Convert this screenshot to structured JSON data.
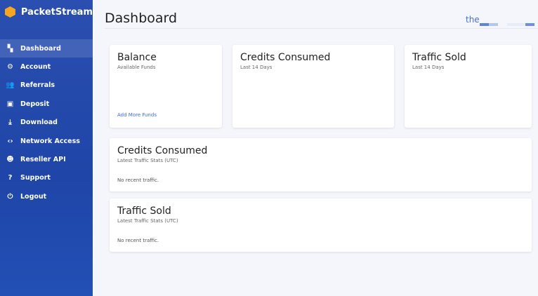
{
  "app": {
    "name": "PacketStream"
  },
  "sidebar": {
    "items": [
      {
        "label": "Dashboard",
        "icon": "dashboard-icon",
        "glyph": "▚",
        "active": true
      },
      {
        "label": "Account",
        "icon": "gear-icon",
        "glyph": "⚙"
      },
      {
        "label": "Referrals",
        "icon": "users-icon",
        "glyph": "👥"
      },
      {
        "label": "Deposit",
        "icon": "money-icon",
        "glyph": "▣"
      },
      {
        "label": "Download",
        "icon": "download-icon",
        "glyph": "⤓"
      },
      {
        "label": "Network Access",
        "icon": "code-icon",
        "glyph": "‹›"
      },
      {
        "label": "Reseller API",
        "icon": "face-icon",
        "glyph": "☻"
      },
      {
        "label": "Support",
        "icon": "question-icon",
        "glyph": "?"
      },
      {
        "label": "Logout",
        "icon": "power-icon",
        "glyph": "⏻"
      }
    ]
  },
  "header": {
    "title": "Dashboard",
    "brand": "the"
  },
  "cards": {
    "balance": {
      "title": "Balance",
      "subtitle": "Available Funds",
      "link": "Add More Funds"
    },
    "credits": {
      "title": "Credits Consumed",
      "subtitle": "Last 14 Days"
    },
    "traffic": {
      "title": "Traffic Sold",
      "subtitle": "Last 14 Days"
    },
    "credits_stats": {
      "title": "Credits Consumed",
      "subtitle": "Latest Traffic Stats (UTC)",
      "empty": "No recent traffic."
    },
    "traffic_stats": {
      "title": "Traffic Sold",
      "subtitle": "Latest Traffic Stats (UTC)",
      "empty": "No recent traffic."
    }
  },
  "colors": {
    "sidebar": "#2149ab",
    "accent": "#3b6ee0",
    "background": "#f5f6fb"
  }
}
